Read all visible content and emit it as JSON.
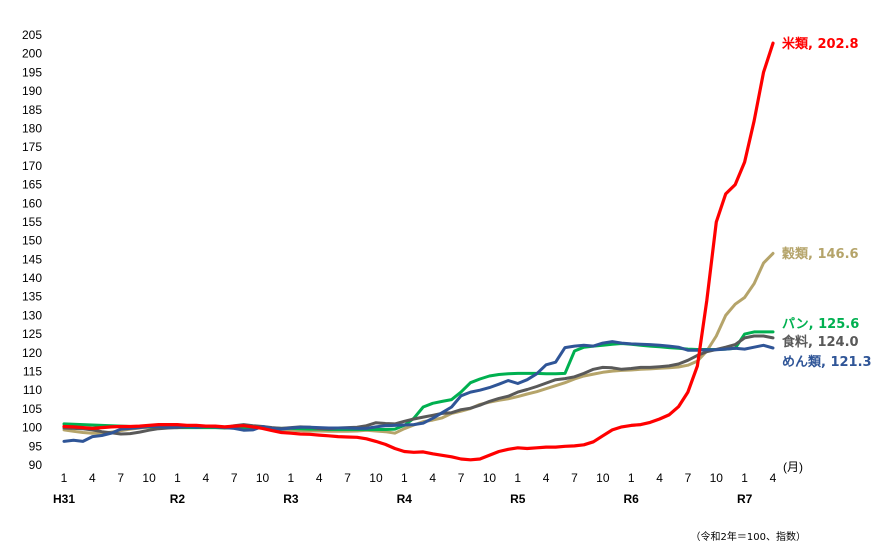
{
  "chart_data": {
    "type": "line",
    "title": "",
    "xlabel": "",
    "ylabel": "",
    "x_unit_label": "(月)",
    "note": "（令和2年＝100、指数）",
    "ylim": [
      90,
      205
    ],
    "y_ticks": [
      90,
      95,
      100,
      105,
      110,
      115,
      120,
      125,
      130,
      135,
      140,
      145,
      150,
      155,
      160,
      165,
      170,
      175,
      180,
      185,
      190,
      195,
      200,
      205
    ],
    "month_ticks": [
      {
        "index": 0,
        "label": "1"
      },
      {
        "index": 3,
        "label": "4"
      },
      {
        "index": 6,
        "label": "7"
      },
      {
        "index": 9,
        "label": "10"
      },
      {
        "index": 12,
        "label": "1"
      },
      {
        "index": 15,
        "label": "4"
      },
      {
        "index": 18,
        "label": "7"
      },
      {
        "index": 21,
        "label": "10"
      },
      {
        "index": 24,
        "label": "1"
      },
      {
        "index": 27,
        "label": "4"
      },
      {
        "index": 30,
        "label": "7"
      },
      {
        "index": 33,
        "label": "10"
      },
      {
        "index": 36,
        "label": "1"
      },
      {
        "index": 39,
        "label": "4"
      },
      {
        "index": 42,
        "label": "7"
      },
      {
        "index": 45,
        "label": "10"
      },
      {
        "index": 48,
        "label": "1"
      },
      {
        "index": 51,
        "label": "4"
      },
      {
        "index": 54,
        "label": "7"
      },
      {
        "index": 57,
        "label": "10"
      },
      {
        "index": 60,
        "label": "1"
      },
      {
        "index": 63,
        "label": "4"
      },
      {
        "index": 66,
        "label": "7"
      },
      {
        "index": 69,
        "label": "10"
      },
      {
        "index": 72,
        "label": "1"
      },
      {
        "index": 75,
        "label": "4"
      }
    ],
    "era_ticks": [
      {
        "index": 0,
        "label": "H31"
      },
      {
        "index": 12,
        "label": "R2"
      },
      {
        "index": 24,
        "label": "R3"
      },
      {
        "index": 36,
        "label": "R4"
      },
      {
        "index": 48,
        "label": "R5"
      },
      {
        "index": 60,
        "label": "R6"
      },
      {
        "index": 72,
        "label": "R7"
      }
    ],
    "series": [
      {
        "name": "米類",
        "end_label": "米類, 202.8",
        "color": "#ff0000",
        "width": 3.2,
        "values": [
          100.3,
          100.2,
          100.0,
          99.8,
          100.0,
          100.2,
          100.3,
          100.3,
          100.4,
          100.6,
          100.8,
          100.8,
          100.8,
          100.6,
          100.6,
          100.4,
          100.4,
          100.2,
          100.4,
          100.5,
          100.2,
          99.8,
          99.2,
          98.7,
          98.5,
          98.3,
          98.2,
          98.0,
          97.8,
          97.6,
          97.5,
          97.4,
          97.0,
          96.3,
          95.5,
          94.4,
          93.6,
          93.4,
          93.5,
          93.0,
          92.6,
          92.2,
          91.6,
          91.4,
          91.6,
          92.6,
          93.6,
          94.2,
          94.6,
          94.4,
          94.6,
          94.8,
          94.8,
          95.0,
          95.1,
          95.4,
          96.2,
          97.8,
          99.4,
          100.2,
          100.6,
          100.8,
          101.4,
          102.3,
          103.4,
          105.6,
          109.5,
          116.5,
          134.0,
          155.0,
          162.5,
          165.0,
          171.0,
          182.0,
          195.0,
          202.8
        ]
      },
      {
        "name": "穀類",
        "end_label": "穀類, 146.6",
        "color": "#b5a46a",
        "width": 3.0,
        "values": [
          99.4,
          99.0,
          98.7,
          98.5,
          98.5,
          98.8,
          99.2,
          99.6,
          99.9,
          100.1,
          100.2,
          100.3,
          100.3,
          100.2,
          100.2,
          100.2,
          100.2,
          100.1,
          100.2,
          100.4,
          100.3,
          100.0,
          99.7,
          99.4,
          99.3,
          99.2,
          99.1,
          99.1,
          99.0,
          99.0,
          99.0,
          99.1,
          99.3,
          99.1,
          98.9,
          98.5,
          99.7,
          100.7,
          101.6,
          102.0,
          102.6,
          103.8,
          104.4,
          105.1,
          106.2,
          106.8,
          107.3,
          107.7,
          108.3,
          109.0,
          109.6,
          110.4,
          111.2,
          112.0,
          113.0,
          113.8,
          114.3,
          114.8,
          115.1,
          115.3,
          115.4,
          115.6,
          115.7,
          115.9,
          116.0,
          116.2,
          116.7,
          117.8,
          120.5,
          124.5,
          130.0,
          133.0,
          134.8,
          138.5,
          144.0,
          146.6
        ]
      },
      {
        "name": "パン",
        "end_label": "パン, 125.6",
        "color": "#00b050",
        "width": 3.0,
        "values": [
          101.0,
          100.9,
          100.8,
          100.7,
          100.6,
          100.5,
          100.4,
          100.3,
          100.3,
          100.2,
          100.2,
          100.1,
          100.0,
          100.0,
          100.0,
          100.0,
          100.0,
          99.9,
          100.0,
          100.0,
          100.0,
          100.0,
          99.9,
          99.8,
          99.8,
          99.7,
          99.6,
          99.6,
          99.5,
          99.5,
          99.5,
          99.5,
          99.5,
          99.5,
          99.5,
          99.6,
          100.6,
          102.5,
          105.5,
          106.5,
          107.0,
          107.5,
          109.5,
          112.0,
          113.0,
          113.8,
          114.2,
          114.4,
          114.5,
          114.5,
          114.5,
          114.4,
          114.4,
          114.5,
          120.5,
          121.5,
          121.8,
          122.0,
          122.3,
          122.5,
          122.3,
          122.0,
          121.8,
          121.6,
          121.4,
          121.2,
          121.0,
          120.9,
          120.9,
          120.9,
          121.0,
          121.2,
          125.0,
          125.6,
          125.6,
          125.6
        ]
      },
      {
        "name": "食料",
        "end_label": "食料, 124.0",
        "color": "#595959",
        "width": 3.0,
        "values": [
          99.9,
          99.8,
          99.7,
          99.4,
          98.9,
          98.6,
          98.3,
          98.4,
          98.8,
          99.3,
          99.7,
          99.9,
          100.0,
          100.2,
          100.4,
          100.4,
          100.2,
          100.0,
          100.5,
          100.8,
          100.5,
          100.3,
          100.0,
          99.8,
          100.0,
          100.2,
          100.1,
          99.7,
          99.7,
          99.9,
          100.0,
          100.1,
          100.5,
          101.3,
          101.1,
          101.0,
          101.7,
          102.3,
          102.8,
          103.3,
          103.8,
          104.0,
          104.8,
          105.2,
          106.0,
          107.0,
          107.8,
          108.4,
          109.5,
          110.2,
          111.0,
          111.9,
          112.8,
          113.1,
          113.6,
          114.5,
          115.6,
          116.1,
          116.0,
          115.6,
          115.8,
          116.1,
          116.1,
          116.3,
          116.5,
          117.0,
          118.0,
          119.3,
          120.3,
          120.9,
          121.5,
          122.2,
          124.0,
          124.5,
          124.5,
          124.0
        ]
      },
      {
        "name": "めん類",
        "end_label": "めん類, 121.3",
        "color": "#2f5597",
        "width": 3.0,
        "values": [
          96.3,
          96.6,
          96.3,
          97.6,
          97.9,
          98.5,
          99.6,
          99.8,
          100.0,
          100.3,
          100.3,
          100.1,
          100.2,
          100.3,
          100.1,
          100.3,
          100.2,
          100.0,
          99.8,
          99.3,
          99.4,
          100.3,
          99.8,
          99.6,
          99.9,
          100.1,
          100.1,
          100.0,
          99.9,
          99.9,
          99.9,
          99.8,
          99.8,
          100.2,
          100.5,
          100.6,
          100.7,
          100.8,
          101.2,
          102.5,
          104.0,
          105.5,
          108.5,
          109.5,
          110.0,
          110.7,
          111.6,
          112.6,
          111.8,
          112.8,
          114.4,
          116.8,
          117.5,
          121.4,
          121.8,
          122.0,
          121.8,
          122.6,
          123.0,
          122.6,
          122.4,
          122.3,
          122.2,
          122.0,
          121.8,
          121.5,
          120.7,
          120.7,
          120.8,
          120.8,
          121.0,
          121.2,
          121.0,
          121.5,
          122.0,
          121.3
        ]
      }
    ]
  }
}
